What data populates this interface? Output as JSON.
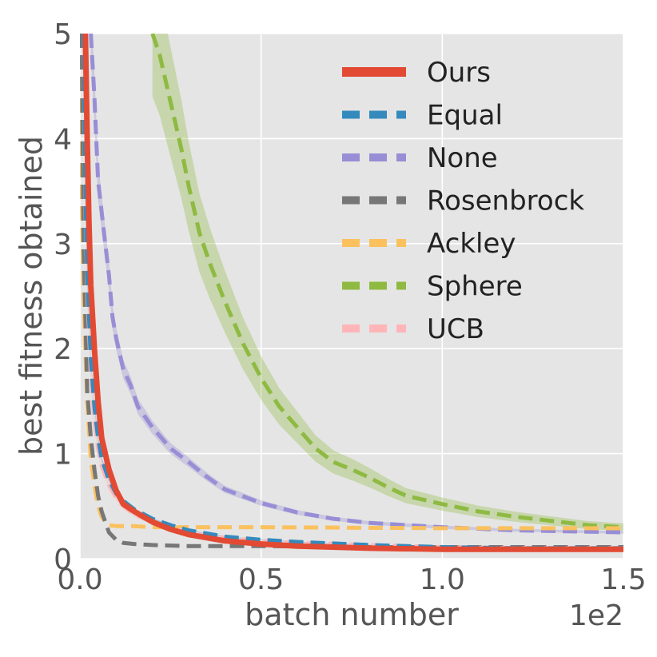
{
  "chart_data": {
    "type": "line",
    "title": "",
    "xlabel": "batch number",
    "ylabel": "best fitness obtained",
    "x_offset_label": "1e2",
    "xlim": [
      0,
      1.5
    ],
    "ylim": [
      0,
      5
    ],
    "xticks": [
      0.0,
      0.5,
      1.0,
      1.5
    ],
    "xtick_labels": [
      "0.0",
      "0.5",
      "1.0",
      "1.5"
    ],
    "yticks": [
      0,
      1,
      2,
      3,
      4,
      5
    ],
    "ytick_labels": [
      "0",
      "1",
      "2",
      "3",
      "4",
      "5"
    ],
    "grid": true,
    "legend_position": "top-right",
    "series": [
      {
        "name": "Ours",
        "color": "#E24A33",
        "dashed": false,
        "band": 0.02,
        "x": [
          0.015,
          0.02,
          0.025,
          0.03,
          0.04,
          0.05,
          0.06,
          0.08,
          0.1,
          0.12,
          0.15,
          0.2,
          0.25,
          0.3,
          0.4,
          0.5,
          0.6,
          0.8,
          1.0,
          1.2,
          1.5
        ],
        "y": [
          5.0,
          4.0,
          3.2,
          2.6,
          2.0,
          1.5,
          1.15,
          0.85,
          0.65,
          0.52,
          0.45,
          0.35,
          0.28,
          0.23,
          0.17,
          0.14,
          0.12,
          0.1,
          0.09,
          0.09,
          0.09
        ]
      },
      {
        "name": "Equal",
        "color": "#348ABD",
        "dashed": true,
        "band": 0.02,
        "x": [
          0.01,
          0.015,
          0.02,
          0.03,
          0.04,
          0.05,
          0.06,
          0.08,
          0.1,
          0.12,
          0.15,
          0.2,
          0.25,
          0.3,
          0.4,
          0.5,
          0.6,
          0.8,
          1.0,
          1.2,
          1.5
        ],
        "y": [
          5.0,
          3.5,
          2.7,
          1.9,
          1.45,
          1.15,
          0.95,
          0.75,
          0.62,
          0.55,
          0.47,
          0.38,
          0.32,
          0.27,
          0.21,
          0.18,
          0.16,
          0.13,
          0.11,
          0.1,
          0.1
        ]
      },
      {
        "name": "None",
        "color": "#988ED5",
        "dashed": true,
        "band": 0.05,
        "x": [
          0.03,
          0.04,
          0.05,
          0.06,
          0.07,
          0.08,
          0.09,
          0.1,
          0.12,
          0.14,
          0.16,
          0.2,
          0.25,
          0.3,
          0.35,
          0.4,
          0.5,
          0.6,
          0.7,
          0.8,
          1.0,
          1.2,
          1.5
        ],
        "y": [
          5.0,
          4.4,
          3.6,
          3.3,
          3.0,
          2.7,
          2.3,
          2.1,
          1.8,
          1.65,
          1.45,
          1.25,
          1.05,
          0.92,
          0.78,
          0.66,
          0.53,
          0.44,
          0.38,
          0.34,
          0.3,
          0.27,
          0.25
        ]
      },
      {
        "name": "Rosenbrock",
        "color": "#777777",
        "dashed": true,
        "band": 0.0,
        "x": [
          0.005,
          0.01,
          0.02,
          0.03,
          0.04,
          0.05,
          0.06,
          0.07,
          0.08,
          0.1,
          0.12,
          0.15,
          0.2,
          0.3,
          0.5,
          0.8,
          1.0,
          1.5
        ],
        "y": [
          5.0,
          3.0,
          1.6,
          1.15,
          0.85,
          0.6,
          0.45,
          0.35,
          0.25,
          0.18,
          0.15,
          0.14,
          0.13,
          0.12,
          0.12,
          0.11,
          0.11,
          0.11
        ]
      },
      {
        "name": "Ackley",
        "color": "#FBC15E",
        "dashed": true,
        "band": 0.0,
        "x": [
          0.0,
          0.005,
          0.01,
          0.02,
          0.03,
          0.04,
          0.05,
          0.06,
          0.07,
          0.08,
          0.1,
          0.15,
          0.2,
          0.5,
          1.0,
          1.5
        ],
        "y": [
          5.0,
          3.5,
          2.5,
          1.5,
          0.95,
          0.7,
          0.5,
          0.4,
          0.35,
          0.32,
          0.31,
          0.31,
          0.3,
          0.3,
          0.29,
          0.29
        ]
      },
      {
        "name": "Sphere",
        "color": "#8EBA42",
        "dashed": true,
        "band": 0.12,
        "x": [
          0.2,
          0.22,
          0.25,
          0.28,
          0.3,
          0.33,
          0.36,
          0.4,
          0.45,
          0.5,
          0.55,
          0.6,
          0.65,
          0.7,
          0.75,
          0.8,
          0.85,
          0.9,
          1.0,
          1.1,
          1.2,
          1.3,
          1.4,
          1.5
        ],
        "y": [
          5.0,
          4.8,
          4.35,
          3.9,
          3.55,
          3.1,
          2.8,
          2.45,
          2.05,
          1.72,
          1.45,
          1.25,
          1.05,
          0.92,
          0.85,
          0.77,
          0.68,
          0.6,
          0.52,
          0.45,
          0.4,
          0.36,
          0.32,
          0.3
        ]
      },
      {
        "name": "UCB",
        "color": "#FFB5B8",
        "dashed": true,
        "band": 0.05,
        "x": [
          0.01,
          0.015,
          0.02,
          0.03,
          0.04,
          0.05,
          0.06,
          0.08,
          0.1,
          0.12,
          0.15,
          0.2,
          0.25,
          0.3,
          0.4,
          0.5,
          0.6,
          0.8,
          1.0,
          1.2,
          1.5
        ],
        "y": [
          5.0,
          3.4,
          2.6,
          1.75,
          1.3,
          1.05,
          0.88,
          0.7,
          0.58,
          0.5,
          0.42,
          0.35,
          0.3,
          0.25,
          0.2,
          0.17,
          0.15,
          0.13,
          0.11,
          0.1,
          0.1
        ]
      }
    ]
  }
}
